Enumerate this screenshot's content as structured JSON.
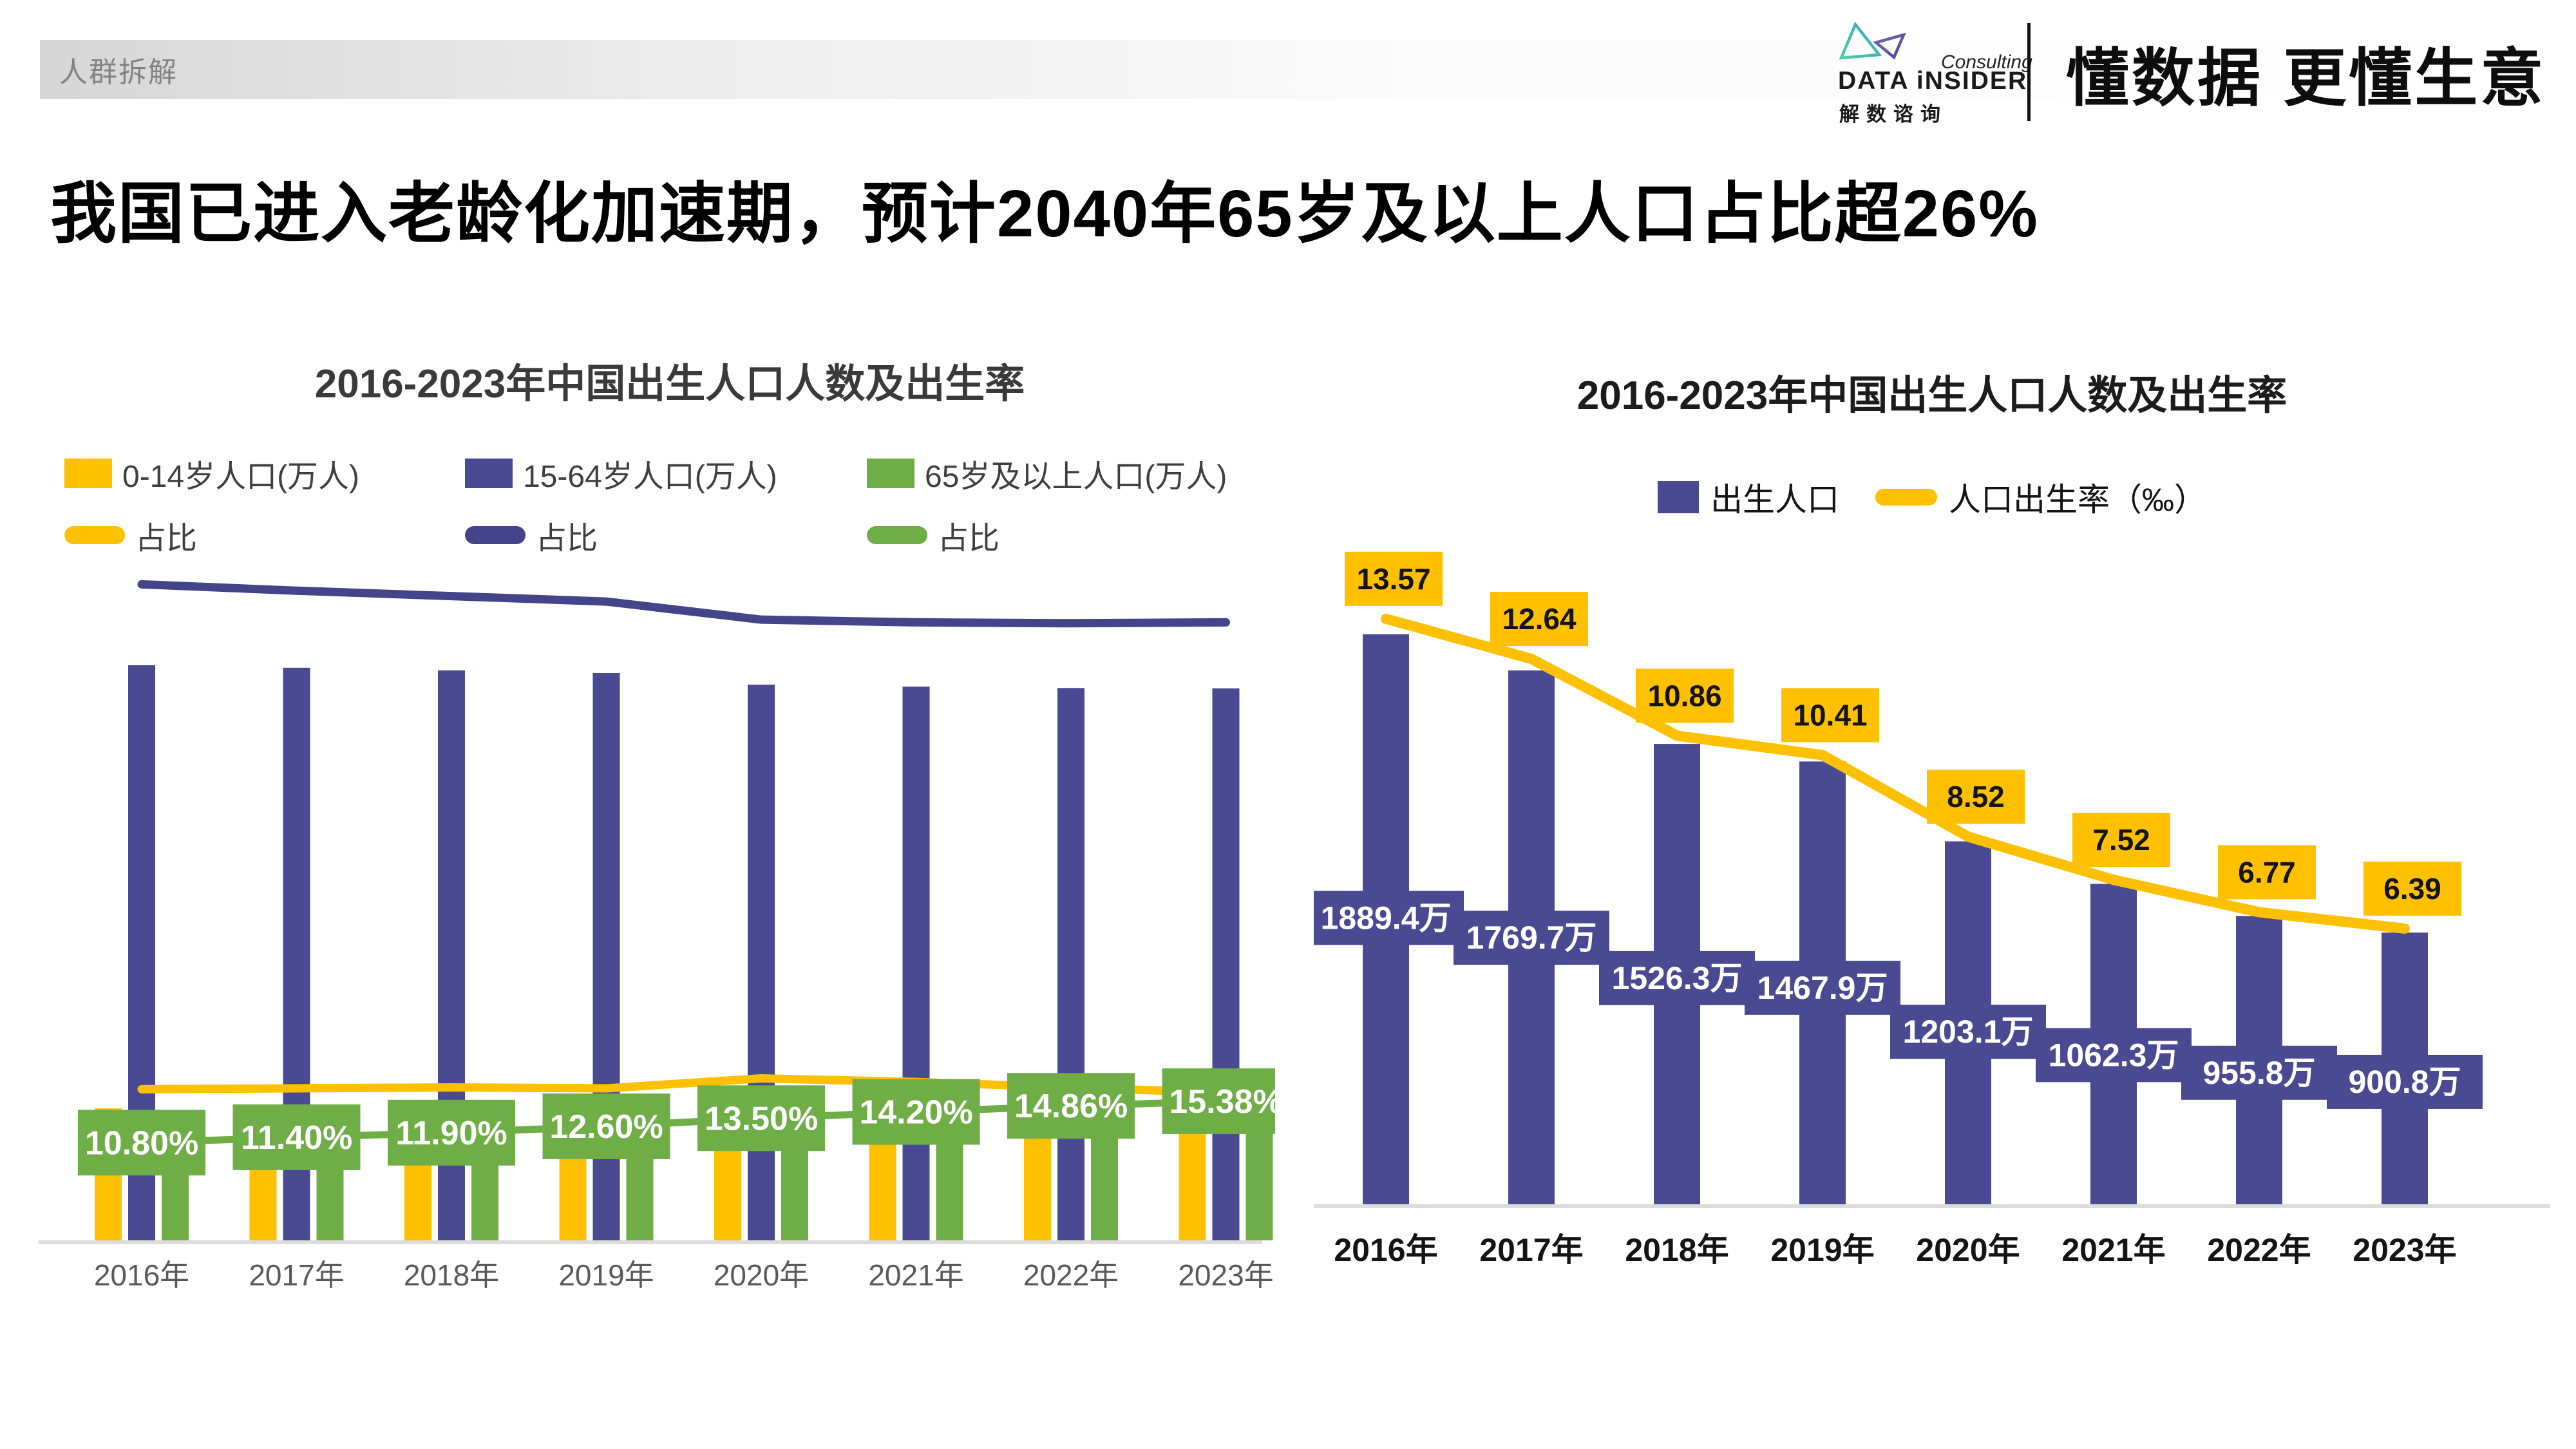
{
  "header": {
    "tag": "人群拆解"
  },
  "brand": {
    "consulting": "Consulting",
    "name": "DATA iNSIDER",
    "name_cn": "解数谘询",
    "slogan": "懂数据 更懂生意"
  },
  "main_title": "我国已进入老龄化加速期，预计2040年65岁及以上人口占比超26%",
  "colors": {
    "yellow": "#FFC000",
    "purple": "#4A4A93",
    "purple_line": "#44448B",
    "green": "#6FAD47",
    "axis_gray": "#DCDCDC",
    "label_gray": "#595959"
  },
  "charts": {
    "left": {
      "title": "2016-2023年中国出生人口人数及出生率",
      "legend": {
        "bars": [
          {
            "label": "0-14岁人口(万人)",
            "color": "#FFC000"
          },
          {
            "label": "15-64岁人口(万人)",
            "color": "#4A4A93"
          },
          {
            "label": "65岁及以上人口(万人)",
            "color": "#6FAD47"
          }
        ],
        "lines": [
          {
            "label": "占比",
            "color": "#FFC000"
          },
          {
            "label": "占比",
            "color": "#44448B"
          },
          {
            "label": "占比",
            "color": "#6FAD47"
          }
        ]
      }
    },
    "right": {
      "title": "2016-2023年中国出生人口人数及出生率",
      "legend": [
        {
          "type": "bar",
          "label": "出生人口",
          "color": "#4A4A93"
        },
        {
          "type": "line",
          "label": "人口出生率（‰）",
          "color": "#FFC000"
        }
      ]
    }
  },
  "chart_data": [
    {
      "type": "bar",
      "subtype": "grouped-bars-with-lines",
      "title": "2016-2023年中国出生人口人数及出生率",
      "categories": [
        "2016年",
        "2017年",
        "2018年",
        "2019年",
        "2020年",
        "2021年",
        "2022年",
        "2023年"
      ],
      "series": [
        {
          "name": "0-14岁人口(万人)",
          "type": "bar",
          "color": "#FFC000",
          "estimated": true,
          "values": [
            23008,
            23348,
            23523,
            23492,
            25277,
            24678,
            23908,
            22978
          ]
        },
        {
          "name": "15-64岁人口(万人)",
          "type": "bar",
          "color": "#4A4A93",
          "estimated": true,
          "values": [
            100260,
            99829,
            99357,
            98914,
            96871,
            96526,
            96289,
            96228
          ]
        },
        {
          "name": "65岁及以上人口(万人)",
          "type": "bar",
          "color": "#6FAD47",
          "estimated": true,
          "values": [
            15003,
            15831,
            16658,
            17603,
            19064,
            20056,
            20978,
            21676
          ]
        },
        {
          "name": "0-14岁占比",
          "type": "line",
          "color": "#FFC000",
          "estimated": true,
          "values": [
            16.7,
            16.8,
            16.9,
            16.8,
            17.9,
            17.5,
            16.9,
            16.3
          ]
        },
        {
          "name": "15-64岁占比",
          "type": "line",
          "color": "#44448B",
          "estimated": true,
          "values": [
            72.5,
            71.8,
            71.2,
            70.6,
            68.6,
            68.3,
            68.2,
            68.3
          ]
        },
        {
          "name": "65岁及以上占比",
          "type": "line",
          "color": "#6FAD47",
          "values": [
            10.8,
            11.4,
            11.9,
            12.6,
            13.5,
            14.2,
            14.86,
            15.38
          ],
          "labels": [
            "10.80%",
            "11.40%",
            "11.90%",
            "12.60%",
            "13.50%",
            "14.20%",
            "14.86%",
            "15.38%"
          ]
        }
      ],
      "legend_position": "top-left",
      "grid": false
    },
    {
      "type": "bar",
      "subtype": "bars-with-line",
      "title": "2016-2023年中国出生人口人数及出生率",
      "categories": [
        "2016年",
        "2017年",
        "2018年",
        "2019年",
        "2020年",
        "2021年",
        "2022年",
        "2023年"
      ],
      "series": [
        {
          "name": "出生人口",
          "type": "bar",
          "color": "#4A4A93",
          "values": [
            1889.4,
            1769.7,
            1526.3,
            1467.9,
            1203.1,
            1062.3,
            955.8,
            900.8
          ],
          "labels": [
            "1889.4万",
            "1769.7万",
            "1526.3万",
            "1467.9万",
            "1203.1万",
            "1062.3万",
            "955.8万",
            "900.8万"
          ]
        },
        {
          "name": "人口出生率（‰）",
          "type": "line",
          "color": "#FFC000",
          "values": [
            13.57,
            12.64,
            10.86,
            10.41,
            8.52,
            7.52,
            6.77,
            6.39
          ],
          "labels": [
            "13.57",
            "12.64",
            "10.86",
            "10.41",
            "8.52",
            "7.52",
            "6.77",
            "6.39"
          ]
        }
      ],
      "legend_position": "top-center",
      "grid": false
    }
  ]
}
